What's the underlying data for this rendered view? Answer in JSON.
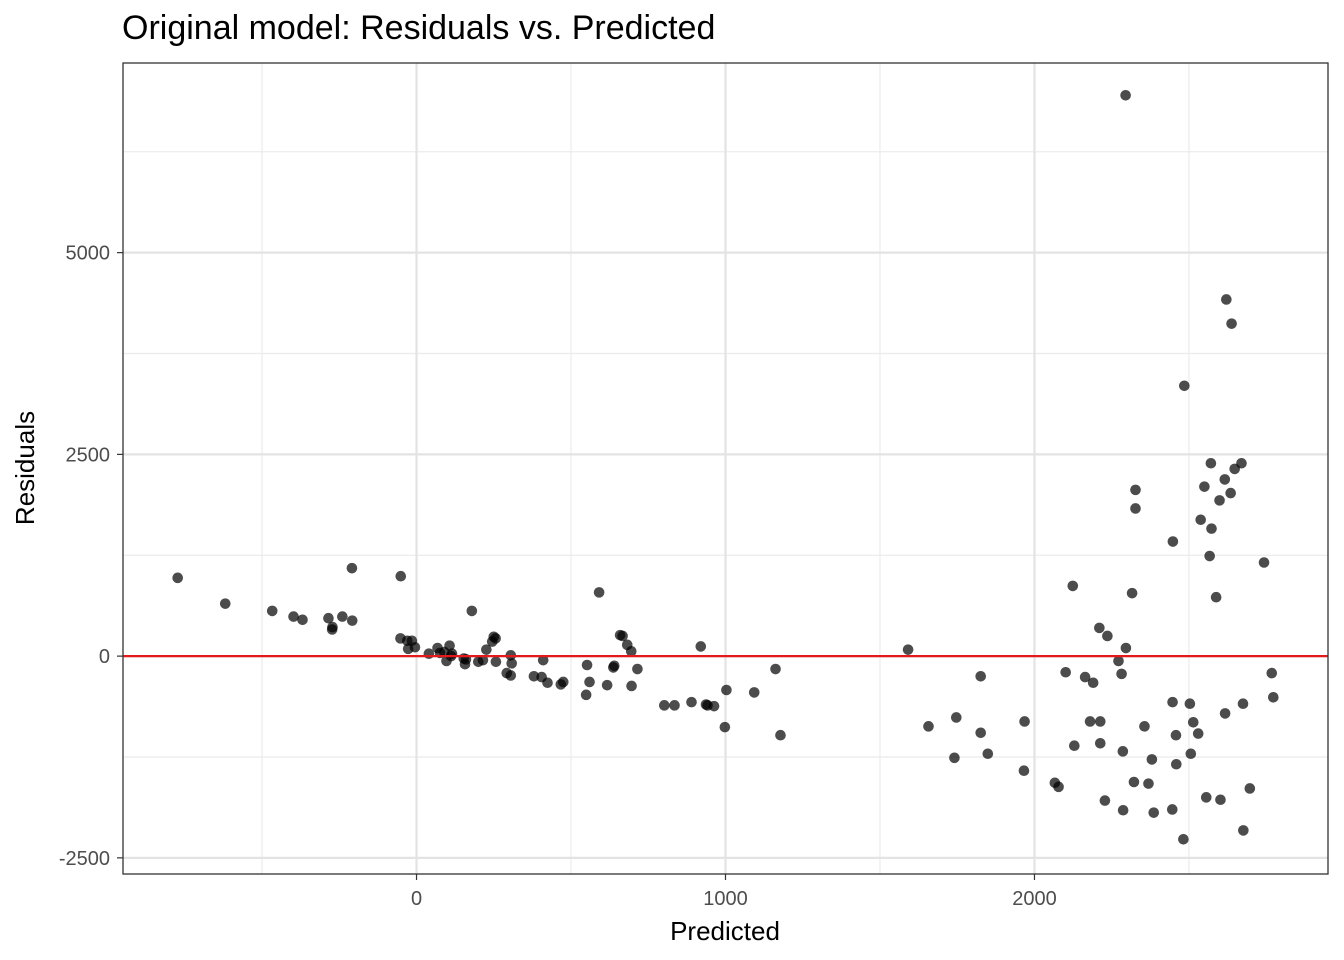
{
  "chart_data": {
    "type": "scatter",
    "title": "Original model: Residuals vs. Predicted",
    "xlabel": "Predicted",
    "ylabel": "Residuals",
    "xlim": [
      -950,
      2950
    ],
    "ylim": [
      -2700,
      7350
    ],
    "x_ticks": [
      0,
      1000,
      2000
    ],
    "x_tick_labels": [
      "0",
      "1000",
      "2000"
    ],
    "x_minor_ticks": [
      -500,
      500,
      1500,
      2500
    ],
    "y_ticks": [
      -2500,
      0,
      2500,
      5000
    ],
    "y_tick_labels": [
      "-2500",
      "0",
      "2500",
      "5000"
    ],
    "y_minor_ticks": [
      -1250,
      1250,
      3750,
      6250
    ],
    "grid": true,
    "legend": "none",
    "point_color": "#000000",
    "point_opacity": 0.7,
    "reference_line": {
      "y": 0,
      "color": "#e31a1c"
    },
    "points": [
      [
        -773,
        970
      ],
      [
        -619,
        650
      ],
      [
        -467,
        560
      ],
      [
        -398,
        490
      ],
      [
        -369,
        450
      ],
      [
        -285,
        470
      ],
      [
        -273,
        330
      ],
      [
        -272,
        360
      ],
      [
        -240,
        490
      ],
      [
        -209,
        1090
      ],
      [
        -208,
        440
      ],
      [
        -51,
        990
      ],
      [
        -52,
        220
      ],
      [
        -30,
        190
      ],
      [
        -27,
        90
      ],
      [
        -15,
        190
      ],
      [
        -5,
        110
      ],
      [
        40,
        30
      ],
      [
        68,
        100
      ],
      [
        76,
        40
      ],
      [
        90,
        50
      ],
      [
        97,
        -60
      ],
      [
        107,
        130
      ],
      [
        115,
        30
      ],
      [
        112,
        0
      ],
      [
        153,
        -30
      ],
      [
        157,
        -100
      ],
      [
        160,
        -40
      ],
      [
        179,
        560
      ],
      [
        200,
        -70
      ],
      [
        215,
        -50
      ],
      [
        226,
        80
      ],
      [
        245,
        180
      ],
      [
        250,
        240
      ],
      [
        256,
        220
      ],
      [
        257,
        -70
      ],
      [
        292,
        -210
      ],
      [
        305,
        10
      ],
      [
        308,
        -90
      ],
      [
        305,
        -240
      ],
      [
        380,
        -250
      ],
      [
        405,
        -260
      ],
      [
        410,
        -50
      ],
      [
        424,
        -330
      ],
      [
        467,
        -350
      ],
      [
        475,
        -320
      ],
      [
        549,
        -480
      ],
      [
        552,
        -110
      ],
      [
        560,
        -320
      ],
      [
        591,
        790
      ],
      [
        617,
        -360
      ],
      [
        637,
        -140
      ],
      [
        640,
        -120
      ],
      [
        659,
        260
      ],
      [
        667,
        250
      ],
      [
        682,
        140
      ],
      [
        695,
        60
      ],
      [
        696,
        -370
      ],
      [
        715,
        -160
      ],
      [
        802,
        -610
      ],
      [
        835,
        -610
      ],
      [
        890,
        -570
      ],
      [
        920,
        120
      ],
      [
        937,
        -600
      ],
      [
        942,
        -610
      ],
      [
        963,
        -620
      ],
      [
        998,
        -880
      ],
      [
        1003,
        -420
      ],
      [
        1093,
        -450
      ],
      [
        1162,
        -160
      ],
      [
        1178,
        -980
      ],
      [
        1591,
        80
      ],
      [
        1657,
        -870
      ],
      [
        1741,
        -1260
      ],
      [
        1747,
        -760
      ],
      [
        1826,
        -250
      ],
      [
        1826,
        -950
      ],
      [
        1849,
        -1210
      ],
      [
        1966,
        -1420
      ],
      [
        1968,
        -810
      ],
      [
        2066,
        -1570
      ],
      [
        2078,
        -1620
      ],
      [
        2101,
        -200
      ],
      [
        2124,
        870
      ],
      [
        2129,
        -1110
      ],
      [
        2164,
        -260
      ],
      [
        2180,
        -810
      ],
      [
        2190,
        -330
      ],
      [
        2210,
        350
      ],
      [
        2213,
        -1080
      ],
      [
        2213,
        -810
      ],
      [
        2228,
        -1790
      ],
      [
        2236,
        250
      ],
      [
        2272,
        -60
      ],
      [
        2282,
        -220
      ],
      [
        2286,
        -1180
      ],
      [
        2287,
        -1910
      ],
      [
        2296,
        100
      ],
      [
        2295,
        6950
      ],
      [
        2316,
        780
      ],
      [
        2322,
        -1560
      ],
      [
        2327,
        2060
      ],
      [
        2327,
        1830
      ],
      [
        2356,
        -870
      ],
      [
        2369,
        -1580
      ],
      [
        2380,
        -1280
      ],
      [
        2386,
        -1940
      ],
      [
        2447,
        -570
      ],
      [
        2448,
        1420
      ],
      [
        2446,
        -1900
      ],
      [
        2458,
        -980
      ],
      [
        2459,
        -1340
      ],
      [
        2482,
        -2270
      ],
      [
        2485,
        3350
      ],
      [
        2503,
        -590
      ],
      [
        2506,
        -1210
      ],
      [
        2514,
        -820
      ],
      [
        2530,
        -960
      ],
      [
        2538,
        1690
      ],
      [
        2550,
        2100
      ],
      [
        2556,
        -1750
      ],
      [
        2567,
        1240
      ],
      [
        2571,
        2390
      ],
      [
        2573,
        1580
      ],
      [
        2588,
        730
      ],
      [
        2599,
        1930
      ],
      [
        2602,
        -1780
      ],
      [
        2616,
        2190
      ],
      [
        2617,
        -710
      ],
      [
        2621,
        4420
      ],
      [
        2635,
        2020
      ],
      [
        2638,
        4120
      ],
      [
        2648,
        2320
      ],
      [
        2670,
        2390
      ],
      [
        2675,
        -590
      ],
      [
        2676,
        -2160
      ],
      [
        2697,
        -1640
      ],
      [
        2743,
        1160
      ],
      [
        2768,
        -210
      ],
      [
        2773,
        -510
      ]
    ]
  }
}
